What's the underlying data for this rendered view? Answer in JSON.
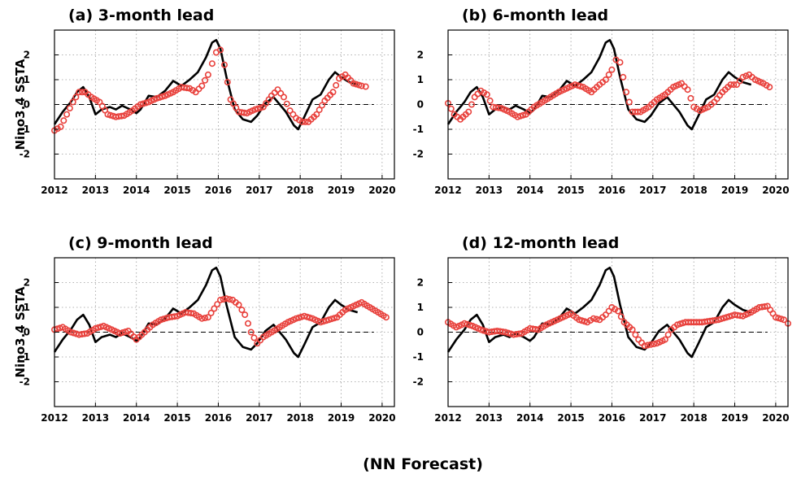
{
  "footer": "(NN Forecast)",
  "colors": {
    "observed": "#000000",
    "forecast": "#e8413c",
    "grid": "#9a9a9a"
  },
  "chart_data": [
    {
      "type": "line",
      "title": "(a) 3-month lead",
      "ylabel": "Nino3.4 SSTA",
      "xlim": [
        2012,
        2020.3
      ],
      "ylim": [
        -3,
        3
      ],
      "xticks": [
        "2012",
        "2013",
        "2014",
        "2015",
        "2016",
        "2017",
        "2018",
        "2019",
        "2020"
      ],
      "yticks": [
        "-2",
        "-1",
        "0",
        "1",
        "2"
      ],
      "grid": true,
      "observed": {
        "x": [
          2012,
          2012.2,
          2012.4,
          2012.55,
          2012.7,
          2012.85,
          2013,
          2013.15,
          2013.35,
          2013.5,
          2013.65,
          2013.85,
          2014,
          2014.1,
          2014.3,
          2014.5,
          2014.7,
          2014.9,
          2015.1,
          2015.3,
          2015.5,
          2015.7,
          2015.85,
          2015.95,
          2016.05,
          2016.2,
          2016.4,
          2016.6,
          2016.8,
          2016.95,
          2017.15,
          2017.35,
          2017.5,
          2017.65,
          2017.85,
          2017.95,
          2018.1,
          2018.3,
          2018.5,
          2018.7,
          2018.85,
          2019,
          2019.2,
          2019.4
        ],
        "y": [
          -0.8,
          -0.3,
          0.1,
          0.5,
          0.7,
          0.3,
          -0.4,
          -0.2,
          -0.1,
          -0.2,
          -0.05,
          -0.2,
          -0.35,
          -0.2,
          0.35,
          0.3,
          0.55,
          0.95,
          0.75,
          1.0,
          1.3,
          1.9,
          2.5,
          2.6,
          2.25,
          1.1,
          -0.2,
          -0.6,
          -0.7,
          -0.45,
          0.05,
          0.3,
          0.0,
          -0.3,
          -0.85,
          -1.0,
          -0.5,
          0.2,
          0.4,
          1.0,
          1.3,
          1.1,
          0.9,
          0.8
        ]
      },
      "forecast": {
        "x": [
          2012,
          2012.15,
          2012.3,
          2012.45,
          2012.6,
          2012.75,
          2012.9,
          2013.1,
          2013.3,
          2013.5,
          2013.7,
          2013.9,
          2014.1,
          2014.3,
          2014.5,
          2014.7,
          2014.9,
          2015.1,
          2015.3,
          2015.45,
          2015.6,
          2015.75,
          2015.85,
          2015.95,
          2016.05,
          2016.15,
          2016.3,
          2016.5,
          2016.7,
          2016.9,
          2017.1,
          2017.3,
          2017.45,
          2017.6,
          2017.75,
          2017.9,
          2018.05,
          2018.2,
          2018.4,
          2018.6,
          2018.8,
          2018.95,
          2019.1,
          2019.3,
          2019.5,
          2019.6
        ],
        "y": [
          -1.05,
          -0.9,
          -0.4,
          0.1,
          0.5,
          0.5,
          0.3,
          0.1,
          -0.4,
          -0.5,
          -0.45,
          -0.25,
          0.0,
          0.1,
          0.25,
          0.35,
          0.5,
          0.7,
          0.65,
          0.5,
          0.75,
          1.2,
          1.65,
          2.1,
          2.2,
          1.6,
          0.2,
          -0.3,
          -0.35,
          -0.2,
          -0.1,
          0.35,
          0.6,
          0.3,
          -0.25,
          -0.55,
          -0.7,
          -0.7,
          -0.4,
          0.15,
          0.5,
          1.05,
          1.2,
          0.85,
          0.75,
          0.72
        ]
      }
    },
    {
      "type": "line",
      "title": "(b) 6-month lead",
      "ylabel": "",
      "xlim": [
        2012,
        2020.3
      ],
      "ylim": [
        -3,
        3
      ],
      "xticks": [
        "2012",
        "2013",
        "2014",
        "2015",
        "2016",
        "2017",
        "2018",
        "2019",
        "2020"
      ],
      "yticks": [
        "-2",
        "-1",
        "0",
        "1",
        "2"
      ],
      "grid": true,
      "observed": {
        "x": [
          2012,
          2012.2,
          2012.4,
          2012.55,
          2012.7,
          2012.85,
          2013,
          2013.15,
          2013.35,
          2013.5,
          2013.65,
          2013.85,
          2014,
          2014.1,
          2014.3,
          2014.5,
          2014.7,
          2014.9,
          2015.1,
          2015.3,
          2015.5,
          2015.7,
          2015.85,
          2015.95,
          2016.05,
          2016.2,
          2016.4,
          2016.6,
          2016.8,
          2016.95,
          2017.15,
          2017.35,
          2017.5,
          2017.65,
          2017.85,
          2017.95,
          2018.1,
          2018.3,
          2018.5,
          2018.7,
          2018.85,
          2019,
          2019.2,
          2019.4
        ],
        "y": [
          -0.8,
          -0.3,
          0.1,
          0.5,
          0.7,
          0.3,
          -0.4,
          -0.2,
          -0.1,
          -0.2,
          -0.05,
          -0.2,
          -0.35,
          -0.2,
          0.35,
          0.3,
          0.55,
          0.95,
          0.75,
          1.0,
          1.3,
          1.9,
          2.5,
          2.6,
          2.25,
          1.1,
          -0.2,
          -0.6,
          -0.7,
          -0.45,
          0.05,
          0.3,
          0.0,
          -0.3,
          -0.85,
          -1.0,
          -0.5,
          0.2,
          0.4,
          1.0,
          1.3,
          1.1,
          0.9,
          0.8
        ]
      },
      "forecast": {
        "x": [
          2012,
          2012.15,
          2012.3,
          2012.5,
          2012.65,
          2012.8,
          2012.95,
          2013.1,
          2013.3,
          2013.5,
          2013.7,
          2013.9,
          2014.1,
          2014.3,
          2014.5,
          2014.7,
          2014.9,
          2015.1,
          2015.3,
          2015.5,
          2015.7,
          2015.85,
          2016,
          2016.1,
          2016.2,
          2016.35,
          2016.5,
          2016.7,
          2016.9,
          2017.1,
          2017.3,
          2017.5,
          2017.7,
          2017.85,
          2018,
          2018.15,
          2018.35,
          2018.5,
          2018.7,
          2018.9,
          2019.05,
          2019.2,
          2019.35,
          2019.5,
          2019.7,
          2019.85
        ],
        "y": [
          0.05,
          -0.4,
          -0.6,
          -0.3,
          0.3,
          0.55,
          0.4,
          -0.1,
          -0.15,
          -0.3,
          -0.5,
          -0.4,
          -0.1,
          0.1,
          0.3,
          0.5,
          0.65,
          0.8,
          0.7,
          0.5,
          0.8,
          1.0,
          1.4,
          1.8,
          1.7,
          0.5,
          -0.3,
          -0.3,
          -0.1,
          0.2,
          0.4,
          0.7,
          0.85,
          0.6,
          -0.1,
          -0.25,
          -0.1,
          0.1,
          0.5,
          0.8,
          0.8,
          1.1,
          1.2,
          1.0,
          0.85,
          0.7
        ]
      }
    },
    {
      "type": "line",
      "title": "(c) 9-month lead",
      "ylabel": "Nino3.4 SSTA",
      "xlim": [
        2012,
        2020.3
      ],
      "ylim": [
        -3,
        3
      ],
      "xticks": [
        "2012",
        "2013",
        "2014",
        "2015",
        "2016",
        "2017",
        "2018",
        "2019",
        "2020"
      ],
      "yticks": [
        "-2",
        "-1",
        "0",
        "1",
        "2"
      ],
      "grid": true,
      "observed": {
        "x": [
          2012,
          2012.2,
          2012.4,
          2012.55,
          2012.7,
          2012.85,
          2013,
          2013.15,
          2013.35,
          2013.5,
          2013.65,
          2013.85,
          2014,
          2014.1,
          2014.3,
          2014.5,
          2014.7,
          2014.9,
          2015.1,
          2015.3,
          2015.5,
          2015.7,
          2015.85,
          2015.95,
          2016.05,
          2016.2,
          2016.4,
          2016.6,
          2016.8,
          2016.95,
          2017.15,
          2017.35,
          2017.5,
          2017.65,
          2017.85,
          2017.95,
          2018.1,
          2018.3,
          2018.5,
          2018.7,
          2018.85,
          2019,
          2019.2,
          2019.4
        ],
        "y": [
          -0.8,
          -0.3,
          0.1,
          0.5,
          0.7,
          0.3,
          -0.4,
          -0.2,
          -0.1,
          -0.2,
          -0.05,
          -0.2,
          -0.35,
          -0.2,
          0.35,
          0.3,
          0.55,
          0.95,
          0.75,
          1.0,
          1.3,
          1.9,
          2.5,
          2.6,
          2.25,
          1.1,
          -0.2,
          -0.6,
          -0.7,
          -0.45,
          0.05,
          0.3,
          0.0,
          -0.3,
          -0.85,
          -1.0,
          -0.5,
          0.2,
          0.4,
          1.0,
          1.3,
          1.1,
          0.9,
          0.8
        ]
      },
      "forecast": {
        "x": [
          2012,
          2012.2,
          2012.4,
          2012.6,
          2012.8,
          2013,
          2013.2,
          2013.4,
          2013.6,
          2013.8,
          2014,
          2014.2,
          2014.4,
          2014.6,
          2014.8,
          2015,
          2015.2,
          2015.4,
          2015.6,
          2015.75,
          2015.9,
          2016.05,
          2016.2,
          2016.35,
          2016.5,
          2016.65,
          2016.8,
          2016.95,
          2017.1,
          2017.3,
          2017.5,
          2017.7,
          2017.9,
          2018.1,
          2018.3,
          2018.5,
          2018.7,
          2018.9,
          2019.1,
          2019.3,
          2019.5,
          2019.7,
          2019.9,
          2020.1
        ],
        "y": [
          0.1,
          0.2,
          0.0,
          -0.1,
          -0.05,
          0.15,
          0.25,
          0.1,
          -0.05,
          0.05,
          -0.3,
          0.0,
          0.3,
          0.5,
          0.6,
          0.65,
          0.8,
          0.75,
          0.55,
          0.6,
          0.95,
          1.3,
          1.35,
          1.3,
          1.1,
          0.7,
          0.0,
          -0.45,
          -0.2,
          0.0,
          0.2,
          0.4,
          0.55,
          0.65,
          0.55,
          0.4,
          0.5,
          0.6,
          0.9,
          1.05,
          1.2,
          1.0,
          0.8,
          0.6
        ]
      }
    },
    {
      "type": "line",
      "title": "(d) 12-month lead",
      "ylabel": "",
      "xlim": [
        2012,
        2020.3
      ],
      "ylim": [
        -3,
        3
      ],
      "xticks": [
        "2012",
        "2013",
        "2014",
        "2015",
        "2016",
        "2017",
        "2018",
        "2019",
        "2020"
      ],
      "yticks": [
        "-2",
        "-1",
        "0",
        "1",
        "2"
      ],
      "grid": true,
      "observed": {
        "x": [
          2012,
          2012.2,
          2012.4,
          2012.55,
          2012.7,
          2012.85,
          2013,
          2013.15,
          2013.35,
          2013.5,
          2013.65,
          2013.85,
          2014,
          2014.1,
          2014.3,
          2014.5,
          2014.7,
          2014.9,
          2015.1,
          2015.3,
          2015.5,
          2015.7,
          2015.85,
          2015.95,
          2016.05,
          2016.2,
          2016.4,
          2016.6,
          2016.8,
          2016.95,
          2017.15,
          2017.35,
          2017.5,
          2017.65,
          2017.85,
          2017.95,
          2018.1,
          2018.3,
          2018.5,
          2018.7,
          2018.85,
          2019,
          2019.2,
          2019.4
        ],
        "y": [
          -0.8,
          -0.3,
          0.1,
          0.5,
          0.7,
          0.3,
          -0.4,
          -0.2,
          -0.1,
          -0.2,
          -0.05,
          -0.2,
          -0.35,
          -0.2,
          0.35,
          0.3,
          0.55,
          0.95,
          0.75,
          1.0,
          1.3,
          1.9,
          2.5,
          2.6,
          2.25,
          1.1,
          -0.2,
          -0.6,
          -0.7,
          -0.45,
          0.05,
          0.3,
          0.0,
          -0.3,
          -0.85,
          -1.0,
          -0.5,
          0.2,
          0.4,
          1.0,
          1.3,
          1.1,
          0.9,
          0.8
        ]
      },
      "forecast": {
        "x": [
          2012,
          2012.2,
          2012.4,
          2012.6,
          2012.8,
          2013,
          2013.2,
          2013.4,
          2013.6,
          2013.8,
          2014,
          2014.2,
          2014.4,
          2014.6,
          2014.8,
          2015,
          2015.2,
          2015.4,
          2015.55,
          2015.7,
          2015.85,
          2016,
          2016.15,
          2016.3,
          2016.5,
          2016.65,
          2016.8,
          2016.95,
          2017.1,
          2017.3,
          2017.45,
          2017.6,
          2017.8,
          2018,
          2018.2,
          2018.4,
          2018.6,
          2018.8,
          2019,
          2019.2,
          2019.4,
          2019.6,
          2019.8,
          2020,
          2020.2,
          2020.3
        ],
        "y": [
          0.4,
          0.2,
          0.35,
          0.25,
          0.1,
          0.0,
          0.05,
          0.0,
          -0.1,
          -0.05,
          0.15,
          0.1,
          0.3,
          0.45,
          0.6,
          0.75,
          0.5,
          0.4,
          0.55,
          0.5,
          0.7,
          1.0,
          0.85,
          0.4,
          0.1,
          -0.3,
          -0.55,
          -0.5,
          -0.45,
          -0.3,
          0.1,
          0.3,
          0.4,
          0.4,
          0.4,
          0.45,
          0.5,
          0.6,
          0.7,
          0.65,
          0.8,
          1.0,
          1.05,
          0.6,
          0.5,
          0.35
        ]
      }
    }
  ]
}
